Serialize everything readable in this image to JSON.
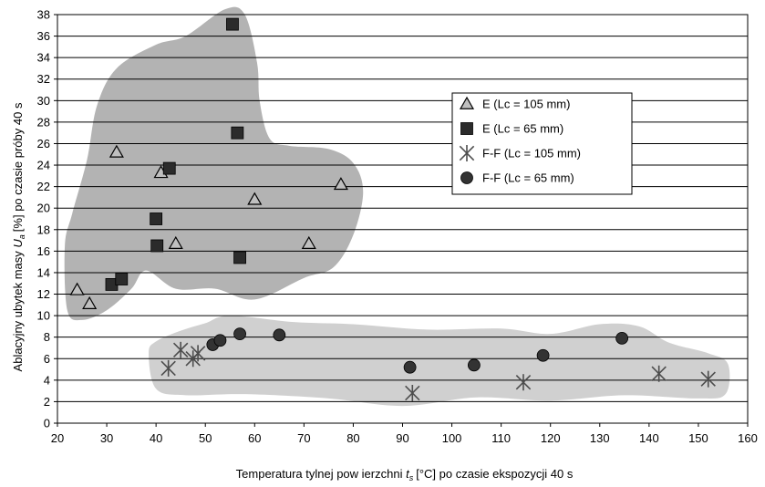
{
  "chart_data": {
    "type": "scatter",
    "title": "",
    "xlabel": {
      "main": "Temperatura tylnej pow ierzchni",
      "symbol": "t",
      "subscript": "s",
      "rest": "[°C] po czasie ekspozycji 40 s"
    },
    "ylabel": {
      "main": "Ablacyjny ubytek masy",
      "symbol": "U",
      "subscript": "a",
      "rest": "[%] po czasie próby 40 s"
    },
    "xlim": [
      20,
      160
    ],
    "ylim": [
      0,
      38
    ],
    "xticks": [
      20,
      30,
      40,
      50,
      60,
      70,
      80,
      90,
      100,
      110,
      120,
      130,
      140,
      150,
      160
    ],
    "yticks": [
      0,
      2,
      4,
      6,
      8,
      10,
      12,
      14,
      16,
      18,
      20,
      22,
      24,
      26,
      28,
      30,
      32,
      34,
      36,
      38
    ],
    "grid": "horizontal",
    "legend_position": "upper-right",
    "series": [
      {
        "name": "E (Lc = 105 mm)",
        "marker": "triangle",
        "color": "#bfbfbf",
        "points": [
          [
            24,
            12.4
          ],
          [
            26.5,
            11.1
          ],
          [
            32,
            25.2
          ],
          [
            41,
            23.3
          ],
          [
            44,
            16.7
          ],
          [
            60,
            20.8
          ],
          [
            71,
            16.7
          ],
          [
            77.5,
            22.2
          ]
        ]
      },
      {
        "name": "E (Lc = 65 mm)",
        "marker": "square",
        "color": "#2b2b2b",
        "points": [
          [
            31,
            12.9
          ],
          [
            33,
            13.4
          ],
          [
            40,
            19.0
          ],
          [
            40.2,
            16.5
          ],
          [
            42.7,
            23.7
          ],
          [
            55.5,
            37.1
          ],
          [
            56.5,
            27.0
          ],
          [
            57,
            15.4
          ]
        ]
      },
      {
        "name": "F-F (Lc = 105 mm)",
        "marker": "asterisk",
        "color": "#4d4d4d",
        "points": [
          [
            42.5,
            5.1
          ],
          [
            45,
            6.8
          ],
          [
            47.5,
            6.0
          ],
          [
            48.5,
            6.5
          ],
          [
            92,
            2.8
          ],
          [
            114.5,
            3.8
          ],
          [
            142,
            4.6
          ],
          [
            152,
            4.1
          ]
        ]
      },
      {
        "name": "F-F (Lc = 65 mm)",
        "marker": "circle",
        "color": "#333333",
        "points": [
          [
            51.5,
            7.3
          ],
          [
            53,
            7.7
          ],
          [
            57,
            8.3
          ],
          [
            65,
            8.2
          ],
          [
            91.5,
            5.2
          ],
          [
            104.5,
            5.4
          ],
          [
            118.5,
            6.3
          ],
          [
            134.5,
            7.9
          ]
        ]
      }
    ],
    "regions": [
      {
        "name": "E-cluster",
        "color": "#b3b3b3",
        "outline": [
          [
            21.5,
            16.5
          ],
          [
            22,
            10.5
          ],
          [
            25,
            9.6
          ],
          [
            30,
            10.5
          ],
          [
            35,
            12.5
          ],
          [
            38,
            14.2
          ],
          [
            44,
            12.5
          ],
          [
            52,
            12.5
          ],
          [
            60,
            11.5
          ],
          [
            70,
            13.5
          ],
          [
            76,
            14.5
          ],
          [
            80,
            17.5
          ],
          [
            82,
            21.5
          ],
          [
            80,
            24.2
          ],
          [
            75,
            25.5
          ],
          [
            67,
            25.8
          ],
          [
            63,
            26.5
          ],
          [
            61,
            30
          ],
          [
            60.5,
            33.5
          ],
          [
            58,
            38
          ],
          [
            54,
            38.5
          ],
          [
            46,
            36
          ],
          [
            40,
            35.2
          ],
          [
            32,
            33
          ],
          [
            28,
            29.5
          ],
          [
            26,
            24.5
          ],
          [
            23,
            19.5
          ]
        ]
      },
      {
        "name": "F-F-cluster",
        "color": "#d0d0d0",
        "outline": [
          [
            38.5,
            6.5
          ],
          [
            40,
            3.2
          ],
          [
            46,
            2.6
          ],
          [
            58,
            2.7
          ],
          [
            75,
            2.3
          ],
          [
            90,
            1.6
          ],
          [
            105,
            2.4
          ],
          [
            120,
            2.1
          ],
          [
            135,
            2.6
          ],
          [
            150,
            2.3
          ],
          [
            155.5,
            2.7
          ],
          [
            156,
            5.5
          ],
          [
            152,
            6.5
          ],
          [
            144,
            7.5
          ],
          [
            138,
            9.0
          ],
          [
            130,
            9.2
          ],
          [
            120,
            8.3
          ],
          [
            110,
            8.8
          ],
          [
            95,
            8.7
          ],
          [
            80,
            9.2
          ],
          [
            68,
            9.4
          ],
          [
            55,
            10.0
          ],
          [
            50,
            9.3
          ],
          [
            45,
            8.6
          ],
          [
            40,
            7.6
          ]
        ]
      }
    ]
  }
}
